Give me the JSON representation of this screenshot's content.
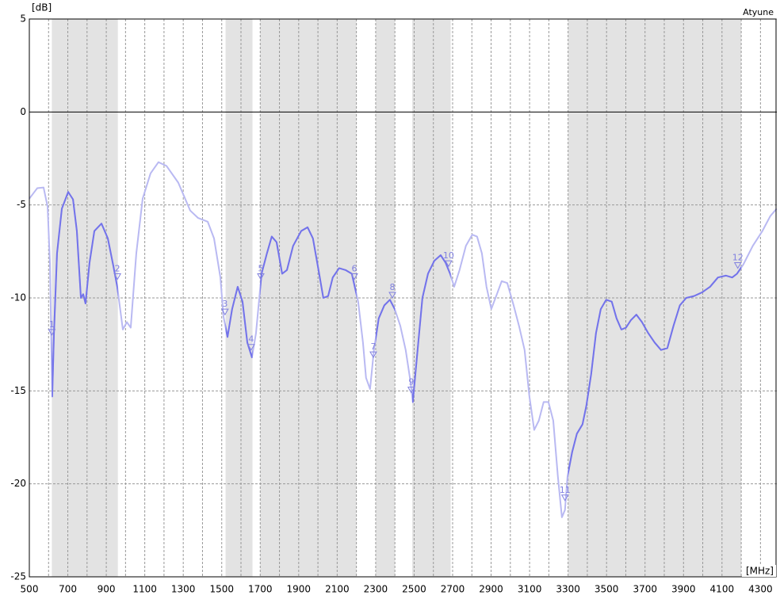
{
  "chart_data": {
    "type": "line",
    "title": "Atyune",
    "ylabel": "[dB]",
    "xlabel": "[MHz]",
    "xlim": [
      500,
      4385
    ],
    "ylim": [
      -25,
      5
    ],
    "xticks": [
      500,
      700,
      900,
      1100,
      1300,
      1500,
      1700,
      1900,
      2100,
      2300,
      2500,
      2700,
      2900,
      3100,
      3300,
      3500,
      3700,
      3900,
      4100,
      4300
    ],
    "xgrid_minor": [
      600,
      800,
      1000,
      1200,
      1400,
      1600,
      1800,
      2000,
      2200,
      2400,
      2600,
      2800,
      3000,
      3200,
      3400,
      3600,
      3800,
      4000,
      4200
    ],
    "yticks": [
      5,
      0,
      -5,
      -10,
      -15,
      -20,
      -25
    ],
    "grid": true,
    "bands": [
      [
        617,
        960
      ],
      [
        1520,
        1660
      ],
      [
        1700,
        2200
      ],
      [
        2300,
        2400
      ],
      [
        2490,
        2690
      ],
      [
        3300,
        4200
      ]
    ],
    "band_color": "#e3e3e3",
    "series": [
      {
        "color": "#b9b9f2",
        "band_color": "#7373ea",
        "x": [
          500,
          541,
          574,
          595,
          607,
          619,
          628,
          644,
          669,
          702,
          727,
          747,
          768,
          780,
          792,
          813,
          838,
          875,
          908,
          937,
          957,
          986,
          1007,
          1027,
          1056,
          1089,
          1130,
          1171,
          1213,
          1274,
          1336,
          1377,
          1427,
          1460,
          1493,
          1509,
          1530,
          1554,
          1583,
          1608,
          1633,
          1657,
          1678,
          1707,
          1735,
          1760,
          1785,
          1814,
          1839,
          1871,
          1913,
          1946,
          1974,
          2003,
          2028,
          2053,
          2077,
          2110,
          2143,
          2176,
          2209,
          2234,
          2250,
          2271,
          2291,
          2316,
          2345,
          2374,
          2399,
          2428,
          2456,
          2481,
          2493,
          2518,
          2543,
          2572,
          2605,
          2638,
          2663,
          2687,
          2708,
          2736,
          2769,
          2802,
          2827,
          2852,
          2876,
          2901,
          2930,
          2955,
          2984,
          3017,
          3045,
          3074,
          3099,
          3124,
          3148,
          3173,
          3198,
          3223,
          3247,
          3268,
          3284,
          3297,
          3321,
          3346,
          3375,
          3395,
          3420,
          3445,
          3470,
          3498,
          3527,
          3552,
          3577,
          3601,
          3626,
          3655,
          3684,
          3717,
          3750,
          3783,
          3816,
          3848,
          3881,
          3914,
          3955,
          3997,
          4038,
          4079,
          4120,
          4153,
          4178,
          4211,
          4260,
          4310,
          4351,
          4384
        ],
        "values": [
          -4.66,
          -4.1,
          -4.06,
          -5.1,
          -8.1,
          -15.3,
          -11.9,
          -7.6,
          -5.2,
          -4.3,
          -4.7,
          -6.4,
          -10,
          -9.8,
          -10.3,
          -8.1,
          -6.4,
          -6,
          -6.8,
          -8.3,
          -9.4,
          -11.7,
          -11.3,
          -11.6,
          -7.6,
          -4.66,
          -3.3,
          -2.7,
          -2.9,
          -3.8,
          -5.3,
          -5.7,
          -5.9,
          -6.8,
          -8.9,
          -11,
          -12.1,
          -10.6,
          -9.4,
          -10.2,
          -12.4,
          -13.2,
          -11.9,
          -8.7,
          -7.6,
          -6.7,
          -7,
          -8.7,
          -8.5,
          -7.2,
          -6.4,
          -6.2,
          -6.8,
          -8.5,
          -10,
          -9.9,
          -8.9,
          -8.4,
          -8.5,
          -8.7,
          -10.2,
          -12.4,
          -14.3,
          -14.9,
          -12.8,
          -11.1,
          -10.4,
          -10.1,
          -10.6,
          -11.5,
          -12.8,
          -14.5,
          -15.6,
          -12.8,
          -10,
          -8.7,
          -8,
          -7.7,
          -8.1,
          -8.7,
          -9.4,
          -8.5,
          -7.2,
          -6.6,
          -6.7,
          -7.6,
          -9.4,
          -10.6,
          -9.8,
          -9.1,
          -9.2,
          -10.4,
          -11.5,
          -12.8,
          -15.3,
          -17.1,
          -16.6,
          -15.6,
          -15.6,
          -16.6,
          -19.6,
          -21.8,
          -21.4,
          -19.6,
          -18.3,
          -17.3,
          -16.8,
          -15.8,
          -14.1,
          -11.9,
          -10.6,
          -10.1,
          -10.2,
          -11.1,
          -11.7,
          -11.6,
          -11.2,
          -10.9,
          -11.3,
          -11.9,
          -12.4,
          -12.8,
          -12.7,
          -11.5,
          -10.4,
          -10,
          -9.9,
          -9.7,
          -9.4,
          -8.9,
          -8.8,
          -8.9,
          -8.7,
          -8.2,
          -7.2,
          -6.4,
          -5.6,
          -5.2
        ]
      }
    ],
    "markers": [
      {
        "label": "1",
        "x": 617,
        "y": -12
      },
      {
        "label": "2",
        "x": 958,
        "y": -9
      },
      {
        "label": "3",
        "x": 1517,
        "y": -10.9
      },
      {
        "label": "4",
        "x": 1653,
        "y": -12.8
      },
      {
        "label": "5",
        "x": 1703,
        "y": -9
      },
      {
        "label": "6",
        "x": 2189,
        "y": -9
      },
      {
        "label": "7",
        "x": 2288,
        "y": -13.2
      },
      {
        "label": "8",
        "x": 2387,
        "y": -10
      },
      {
        "label": "9",
        "x": 2485,
        "y": -15.1
      },
      {
        "label": "10",
        "x": 2679,
        "y": -8.3
      },
      {
        "label": "11",
        "x": 3284,
        "y": -20.9
      },
      {
        "label": "12",
        "x": 4182,
        "y": -8.4
      }
    ]
  }
}
